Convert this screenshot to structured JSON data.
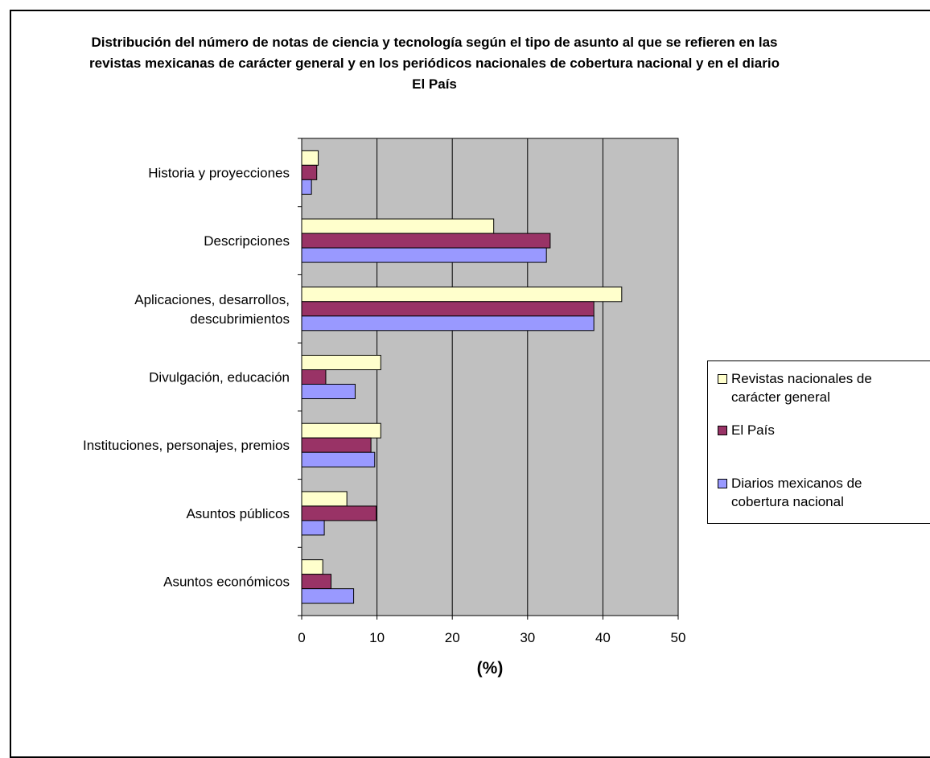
{
  "chart_data": {
    "type": "bar",
    "orientation": "horizontal",
    "title": "Distribución del número de notas de ciencia y tecnología según el tipo de asunto al que se refieren en las revistas mexicanas de carácter general y en los periódicos nacionales de cobertura nacional y en el diario El País",
    "xlabel": "(%)",
    "ylabel": "",
    "xlim": [
      0,
      50
    ],
    "xticks": [
      0,
      10,
      20,
      30,
      40,
      50
    ],
    "grid": true,
    "legend_position": "right",
    "categories": [
      "Historia y proyecciones",
      "Descripciones",
      "Aplicaciones, desarrollos, descubrimientos",
      "Divulgación, educación",
      "Instituciones, personajes, premios",
      "Asuntos públicos",
      "Asuntos económicos"
    ],
    "category_lines": [
      [
        "Historia y proyecciones"
      ],
      [
        "Descripciones"
      ],
      [
        "Aplicaciones, desarrollos,",
        "descubrimientos"
      ],
      [
        "Divulgación, educación"
      ],
      [
        "Instituciones, personajes, premios"
      ],
      [
        "Asuntos públicos"
      ],
      [
        "Asuntos económicos"
      ]
    ],
    "series": [
      {
        "name": "Revistas nacionales de carácter general",
        "name_lines": [
          "Revistas nacionales  de",
          "carácter general"
        ],
        "color": "#ffffcc",
        "values": [
          2.2,
          25.5,
          42.5,
          10.5,
          10.5,
          6.0,
          2.8
        ]
      },
      {
        "name": "El País",
        "name_lines": [
          "El País"
        ],
        "color": "#993366",
        "values": [
          2.0,
          33.0,
          38.8,
          3.2,
          9.2,
          9.9,
          3.9
        ]
      },
      {
        "name": "Diarios mexicanos de cobertura nacional",
        "name_lines": [
          "Diarios mexicanos de",
          "cobertura nacional"
        ],
        "color": "#9999ff",
        "values": [
          1.3,
          32.5,
          38.8,
          7.1,
          9.7,
          3.0,
          6.9
        ]
      }
    ],
    "plot_background": "#c0c0c0"
  }
}
